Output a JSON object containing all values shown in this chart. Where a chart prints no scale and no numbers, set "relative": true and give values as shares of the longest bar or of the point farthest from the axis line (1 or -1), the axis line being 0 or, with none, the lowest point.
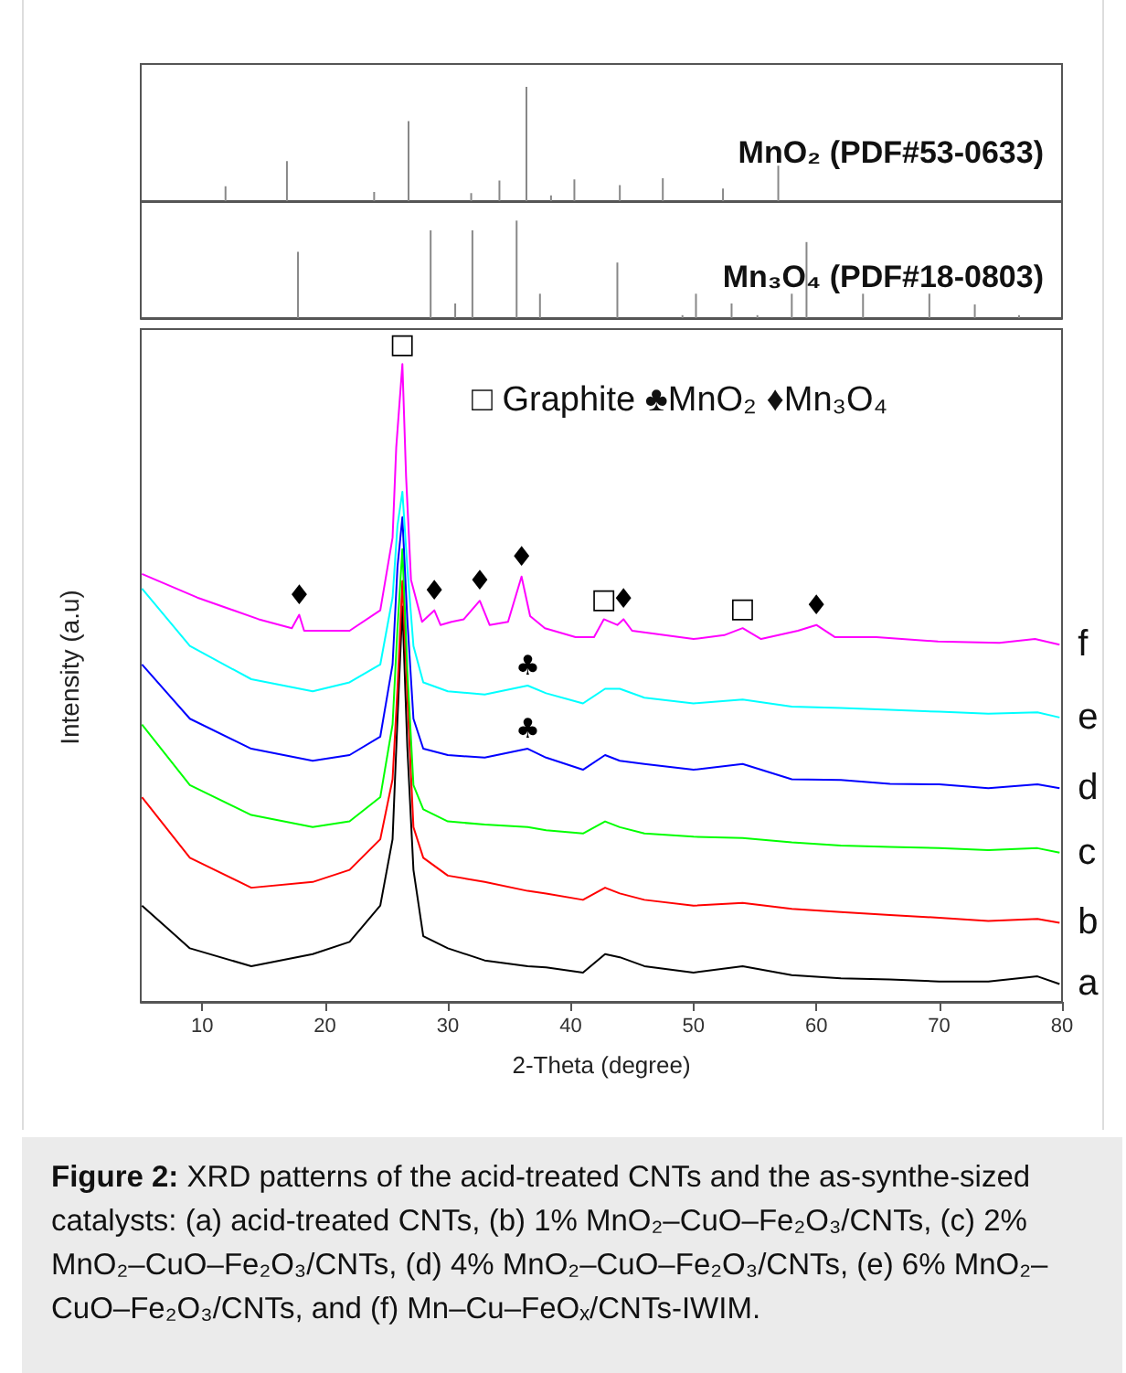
{
  "chart_data": [
    {
      "type": "bar",
      "title": "MnO₂ (PDF#53-0633)",
      "relative": true,
      "tick_labels": false,
      "xlim": [
        5,
        80
      ],
      "color": "#888888",
      "x": [
        11.9,
        16.9,
        24.0,
        26.8,
        31.9,
        34.2,
        36.4,
        38.4,
        40.3,
        44.0,
        47.5,
        52.4,
        56.9
      ],
      "values": [
        0.13,
        0.35,
        0.08,
        0.7,
        0.07,
        0.18,
        1,
        0.05,
        0.19,
        0.14,
        0.2,
        0.11,
        0.31
      ]
    },
    {
      "type": "bar",
      "title": "Mn₃O₄ (PDF#18-0803)",
      "relative": true,
      "tick_labels": false,
      "xlim": [
        5,
        80
      ],
      "color": "#888888",
      "x": [
        17.8,
        28.6,
        30.6,
        32.0,
        35.6,
        37.5,
        43.8,
        49.1,
        50.2,
        53.1,
        55.2,
        58.0,
        59.2,
        63.8,
        69.2,
        72.9,
        76.5
      ],
      "values": [
        0.68,
        0.9,
        0.15,
        0.9,
        1,
        0.25,
        0.57,
        0.03,
        0.25,
        0.15,
        0.03,
        0.25,
        0.78,
        0.25,
        0.25,
        0.14,
        0.03
      ]
    },
    {
      "type": "line",
      "relative": true,
      "tick_labels": "x",
      "xlabel": "2-Theta (degree)",
      "ylabel": "Intensity (a.u)",
      "xlim": [
        5,
        80
      ],
      "xticks": [
        10,
        20,
        30,
        40,
        50,
        60,
        70,
        80
      ],
      "x": [
        5.1,
        9,
        14,
        19,
        22,
        24.5,
        25.5,
        25.9,
        26.3,
        26.7,
        27.2,
        28,
        30,
        33,
        36.5,
        38,
        41,
        42.8,
        44,
        46,
        50,
        54,
        58,
        62,
        66,
        70,
        74,
        78,
        79.8
      ],
      "series": [
        {
          "name": "a",
          "color": "#000000",
          "values": [
            0.151,
            0.084,
            0.056,
            0.075,
            0.094,
            0.151,
            0.255,
            0.444,
            0.62,
            0.4,
            0.207,
            0.103,
            0.084,
            0.065,
            0.056,
            0.054,
            0.046,
            0.075,
            0.07,
            0.056,
            0.046,
            0.056,
            0.042,
            0.037,
            0.035,
            0.032,
            0.032,
            0.04,
            0.028
          ]
        },
        {
          "name": "b",
          "color": "#ff0000",
          "values": [
            0.321,
            0.226,
            0.179,
            0.188,
            0.207,
            0.255,
            0.349,
            0.491,
            0.66,
            0.48,
            0.274,
            0.226,
            0.198,
            0.188,
            0.174,
            0.17,
            0.16,
            0.179,
            0.17,
            0.16,
            0.151,
            0.155,
            0.146,
            0.141,
            0.136,
            0.132,
            0.127,
            0.13,
            0.124
          ]
        },
        {
          "name": "c",
          "color": "#00ff00",
          "values": [
            0.435,
            0.34,
            0.293,
            0.274,
            0.283,
            0.321,
            0.435,
            0.586,
            0.71,
            0.52,
            0.34,
            0.302,
            0.283,
            0.278,
            0.274,
            0.269,
            0.264,
            0.283,
            0.274,
            0.264,
            0.259,
            0.257,
            0.25,
            0.245,
            0.243,
            0.241,
            0.238,
            0.241,
            0.234
          ]
        },
        {
          "name": "d",
          "color": "#0000ff",
          "values": [
            0.529,
            0.444,
            0.397,
            0.378,
            0.387,
            0.416,
            0.529,
            0.682,
            0.76,
            0.6,
            0.444,
            0.397,
            0.387,
            0.383,
            0.397,
            0.383,
            0.364,
            0.387,
            0.378,
            0.373,
            0.364,
            0.373,
            0.349,
            0.348,
            0.342,
            0.341,
            0.335,
            0.341,
            0.335
          ]
        },
        {
          "name": "e",
          "color": "#00ffff",
          "values": [
            0.648,
            0.558,
            0.506,
            0.487,
            0.501,
            0.529,
            0.634,
            0.747,
            0.8,
            0.682,
            0.558,
            0.501,
            0.487,
            0.482,
            0.496,
            0.484,
            0.468,
            0.491,
            0.491,
            0.477,
            0.468,
            0.474,
            0.463,
            0.461,
            0.458,
            0.455,
            0.452,
            0.454,
            0.446
          ]
        },
        {
          "name": "f",
          "color": "#ff00ff",
          "x": [
            5.1,
            9.6,
            14.6,
            17.3,
            17.9,
            18.3,
            22.0,
            24.5,
            25.5,
            25.8,
            26.3,
            26.6,
            27.0,
            27.9,
            28.9,
            29.4,
            30.3,
            31.3,
            32.6,
            33.4,
            34.9,
            36.0,
            36.7,
            37.9,
            40.4,
            41.9,
            42.7,
            43.8,
            44.3,
            45.0,
            50.0,
            52.5,
            54.0,
            55.5,
            58.5,
            60.0,
            61.5,
            64.9,
            69.9,
            74.9,
            77.8,
            79.8
          ],
          "values": [
            0.671,
            0.634,
            0.6,
            0.586,
            0.607,
            0.582,
            0.582,
            0.614,
            0.728,
            0.87,
            1,
            0.824,
            0.662,
            0.596,
            0.614,
            0.591,
            0.596,
            0.6,
            0.629,
            0.591,
            0.596,
            0.667,
            0.605,
            0.586,
            0.572,
            0.572,
            0.6,
            0.591,
            0.6,
            0.582,
            0.569,
            0.575,
            0.586,
            0.569,
            0.582,
            0.591,
            0.572,
            0.572,
            0.565,
            0.563,
            0.569,
            0.56
          ]
        }
      ],
      "annotations": [
        {
          "text": "□",
          "x": 26.3,
          "y": 1
        },
        {
          "text": "♦",
          "x": 17.9,
          "y": 0.607
        },
        {
          "text": "♦",
          "x": 28.9,
          "y": 0.614
        },
        {
          "text": "♦",
          "x": 32.6,
          "y": 0.629
        },
        {
          "text": "♦",
          "x": 36.0,
          "y": 0.667
        },
        {
          "text": "□",
          "x": 42.7,
          "y": 0.6
        },
        {
          "text": "♦",
          "x": 44.3,
          "y": 0.6
        },
        {
          "text": "□",
          "x": 54.0,
          "y": 0.586
        },
        {
          "text": "♦",
          "x": 60.0,
          "y": 0.591
        },
        {
          "text": "♣",
          "x": 36.5,
          "y": 0.496
        },
        {
          "text": "♣",
          "x": 36.5,
          "y": 0.397
        },
        "□ Graphite ♣MnO₂ ♦Mn₃O₄",
        "Figure 2: XRD patterns of the acid-treated CNTs and the as-synthe-sized catalysts: (a) acid-treated CNTs, (b) 1% MnO₂–CuO–Fe₂O₃/CNTs, (c) 2% MnO₂–CuO–Fe₂O₃/CNTs, (d) 4% MnO₂–CuO–Fe₂O₃/CNTs, (e) 6% MnO₂–CuO–Fe₂O₃/CNTs, and (f) Mn–Cu–FeOₓ/CNTs-IWIM."
      ]
    }
  ]
}
